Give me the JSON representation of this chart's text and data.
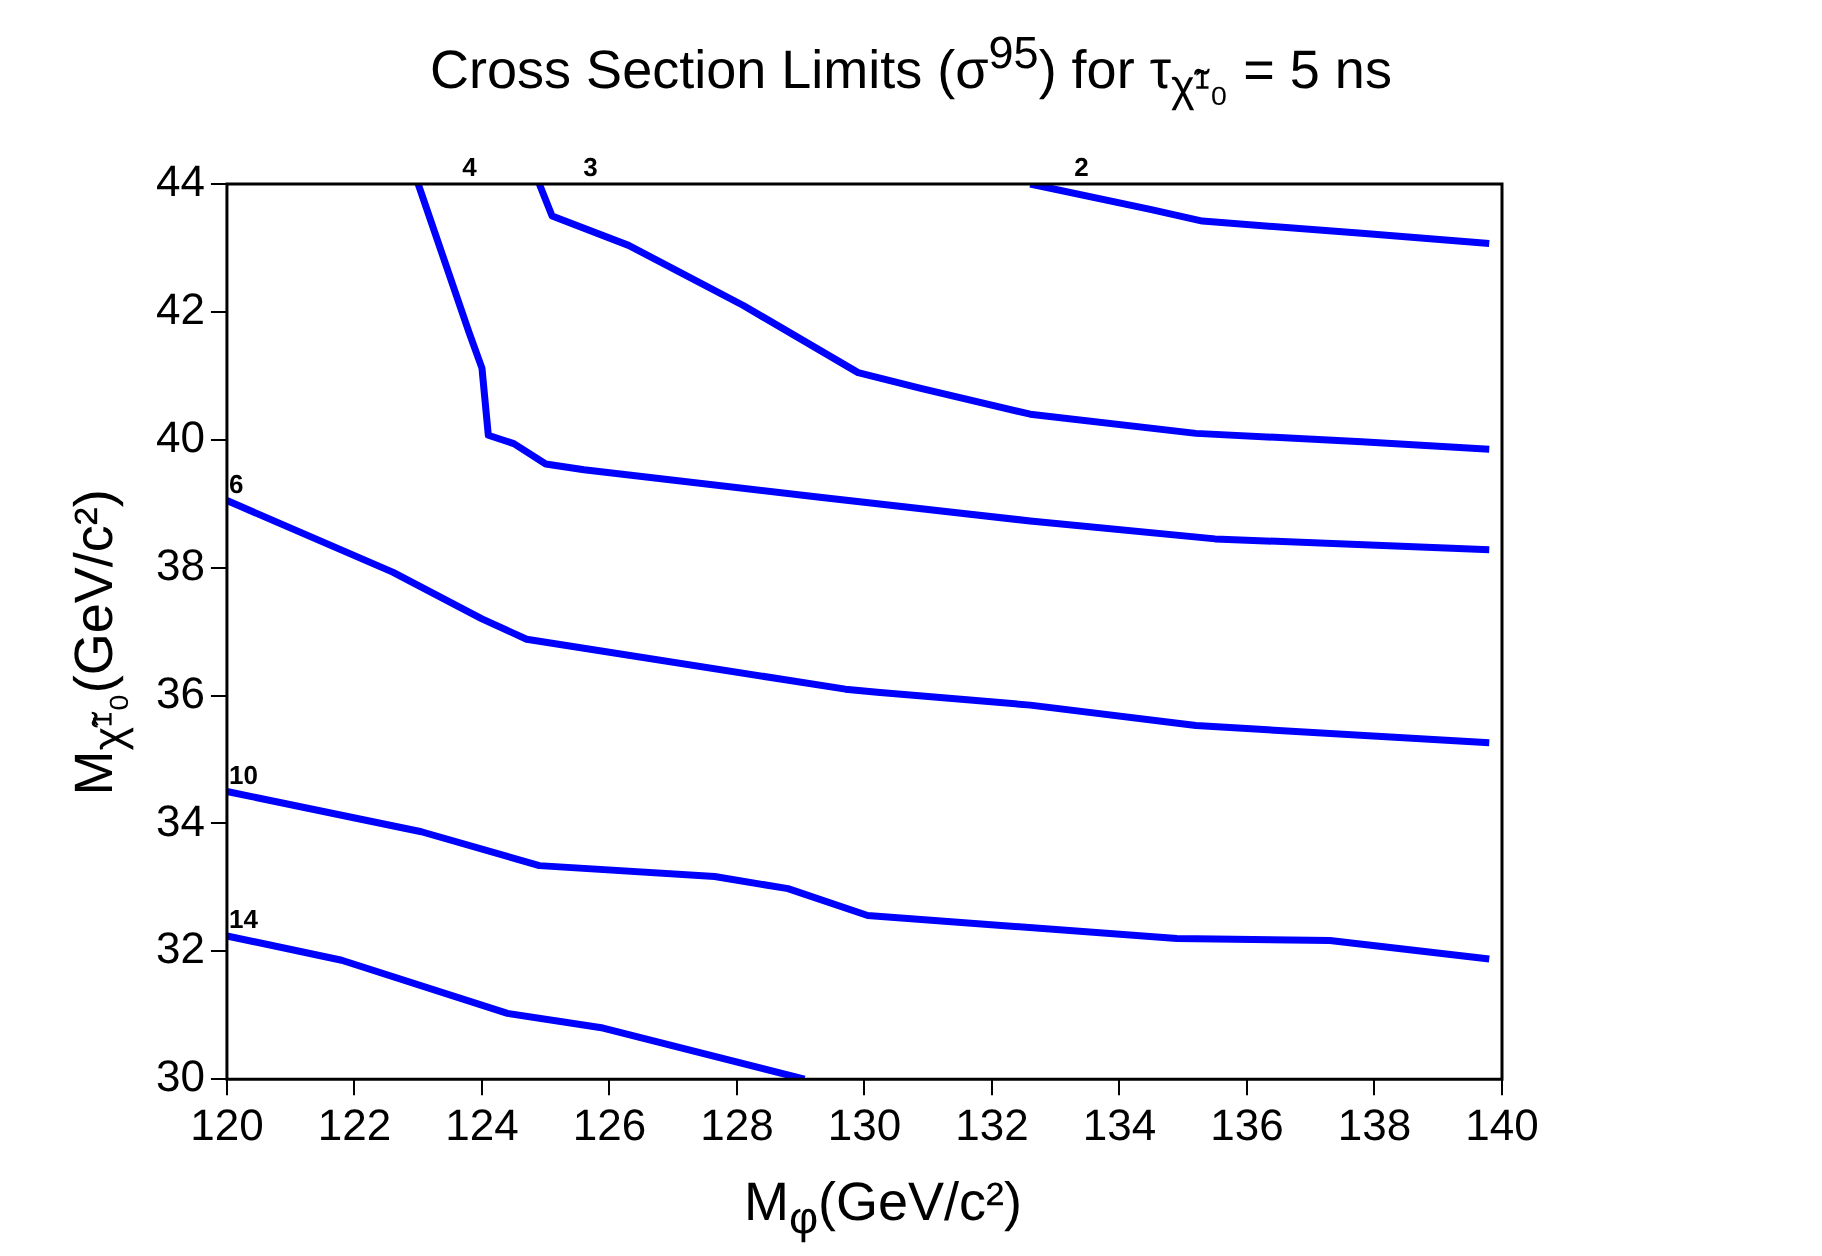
{
  "chart_data": {
    "type": "line",
    "title": "Cross Section Limits (σ$^{95}$) for τ$_{χ̃¹₀}$ = 5 ns",
    "xlabel": "M$_{φ}$(GeV/c²)",
    "ylabel": "M$_{χ̃¹₀}$(GeV/c²)",
    "xlim": [
      120,
      140
    ],
    "xticks": [
      120,
      122,
      124,
      126,
      128,
      130,
      132,
      134,
      136,
      138,
      140
    ],
    "ylim": [
      30,
      44
    ],
    "yticks": [
      30,
      32,
      34,
      36,
      38,
      40,
      42,
      44
    ],
    "series": [
      {
        "name": "2",
        "color": "#0000ff",
        "x": [
          132.6,
          134.5,
          135.3,
          137.8,
          139.8
        ],
        "values": [
          44,
          43.6,
          43.42,
          43.23,
          43.07
        ]
      },
      {
        "name": "3",
        "color": "#0000ff",
        "x": [
          124.9,
          125.1,
          126.3,
          128.1,
          129.9,
          130.9,
          132.6,
          135.2,
          137.8,
          139.8
        ],
        "values": [
          44,
          43.5,
          43.04,
          42.1,
          41.05,
          40.8,
          40.4,
          40.1,
          39.97,
          39.85
        ]
      },
      {
        "name": "4",
        "color": "#0000ff",
        "x": [
          123.0,
          123.8,
          124.0,
          124.1,
          124.5,
          125.0,
          125.6,
          129.3,
          132.6,
          135.5,
          139.8
        ],
        "values": [
          44,
          41.67,
          41.12,
          40.07,
          39.94,
          39.62,
          39.53,
          39.1,
          38.73,
          38.45,
          38.28
        ]
      },
      {
        "name": "6",
        "color": "#0000ff",
        "x": [
          120.0,
          122.6,
          124.0,
          124.7,
          129.7,
          130.2,
          132.6,
          135.2,
          139.8
        ],
        "values": [
          39.05,
          37.93,
          37.2,
          36.88,
          36.1,
          36.05,
          35.85,
          35.53,
          35.26
        ]
      },
      {
        "name": "10",
        "color": "#0000ff",
        "x": [
          120.0,
          123.05,
          124.9,
          127.65,
          128.8,
          130.05,
          134.9,
          137.3,
          139.8
        ],
        "values": [
          34.5,
          33.87,
          33.34,
          33.17,
          32.98,
          32.56,
          32.2,
          32.17,
          31.88
        ]
      },
      {
        "name": "14",
        "color": "#0000ff",
        "x": [
          120.0,
          121.8,
          124.4,
          125.9,
          129.06
        ],
        "values": [
          32.24,
          31.86,
          31.03,
          30.8,
          30
        ]
      }
    ]
  }
}
